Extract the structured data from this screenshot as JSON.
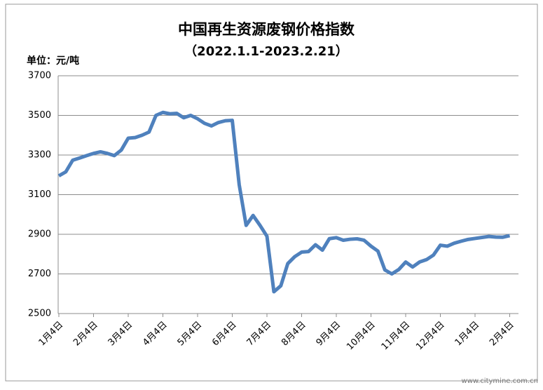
{
  "chart_data": {
    "type": "line",
    "title": "中国再生资源废钢价格指数",
    "subtitle": "（2022.1.1-2023.2.21）",
    "y_label": "单位：元/吨",
    "watermark": "www.citymine.com.cn",
    "categories": [
      "1月4日",
      null,
      null,
      null,
      null,
      "2月4日",
      null,
      null,
      null,
      null,
      "3月4日",
      null,
      null,
      null,
      null,
      "4月4日",
      null,
      null,
      null,
      null,
      "5月4日",
      null,
      null,
      null,
      null,
      "6月4日",
      null,
      null,
      null,
      null,
      "7月4日",
      null,
      null,
      null,
      null,
      "8月4日",
      null,
      null,
      null,
      null,
      "9月4日",
      null,
      null,
      null,
      null,
      "10月4日",
      null,
      null,
      null,
      null,
      "11月4日",
      null,
      null,
      null,
      null,
      "12月4日",
      null,
      null,
      null,
      null,
      "1月4日",
      null,
      null,
      null,
      null,
      "2月4日"
    ],
    "series": [
      {
        "name": "废钢价格指数",
        "color": "#4f81bd",
        "values": [
          3195,
          3215,
          3274,
          3285,
          3297,
          3308,
          3316,
          3308,
          3297,
          3325,
          3385,
          3388,
          3400,
          3416,
          3500,
          3515,
          3508,
          3510,
          3488,
          3500,
          3483,
          3460,
          3447,
          3464,
          3473,
          3475,
          3150,
          2945,
          2995,
          2945,
          2890,
          2610,
          2640,
          2752,
          2787,
          2810,
          2813,
          2847,
          2820,
          2878,
          2883,
          2870,
          2875,
          2877,
          2870,
          2840,
          2815,
          2720,
          2700,
          2722,
          2760,
          2735,
          2760,
          2772,
          2795,
          2845,
          2840,
          2855,
          2865,
          2874,
          2879,
          2884,
          2889,
          2886,
          2885,
          2893
        ]
      }
    ],
    "ylim": [
      2500,
      3700
    ],
    "yticks": [
      2500,
      2700,
      2900,
      3100,
      3300,
      3500,
      3700
    ],
    "grid": true
  }
}
